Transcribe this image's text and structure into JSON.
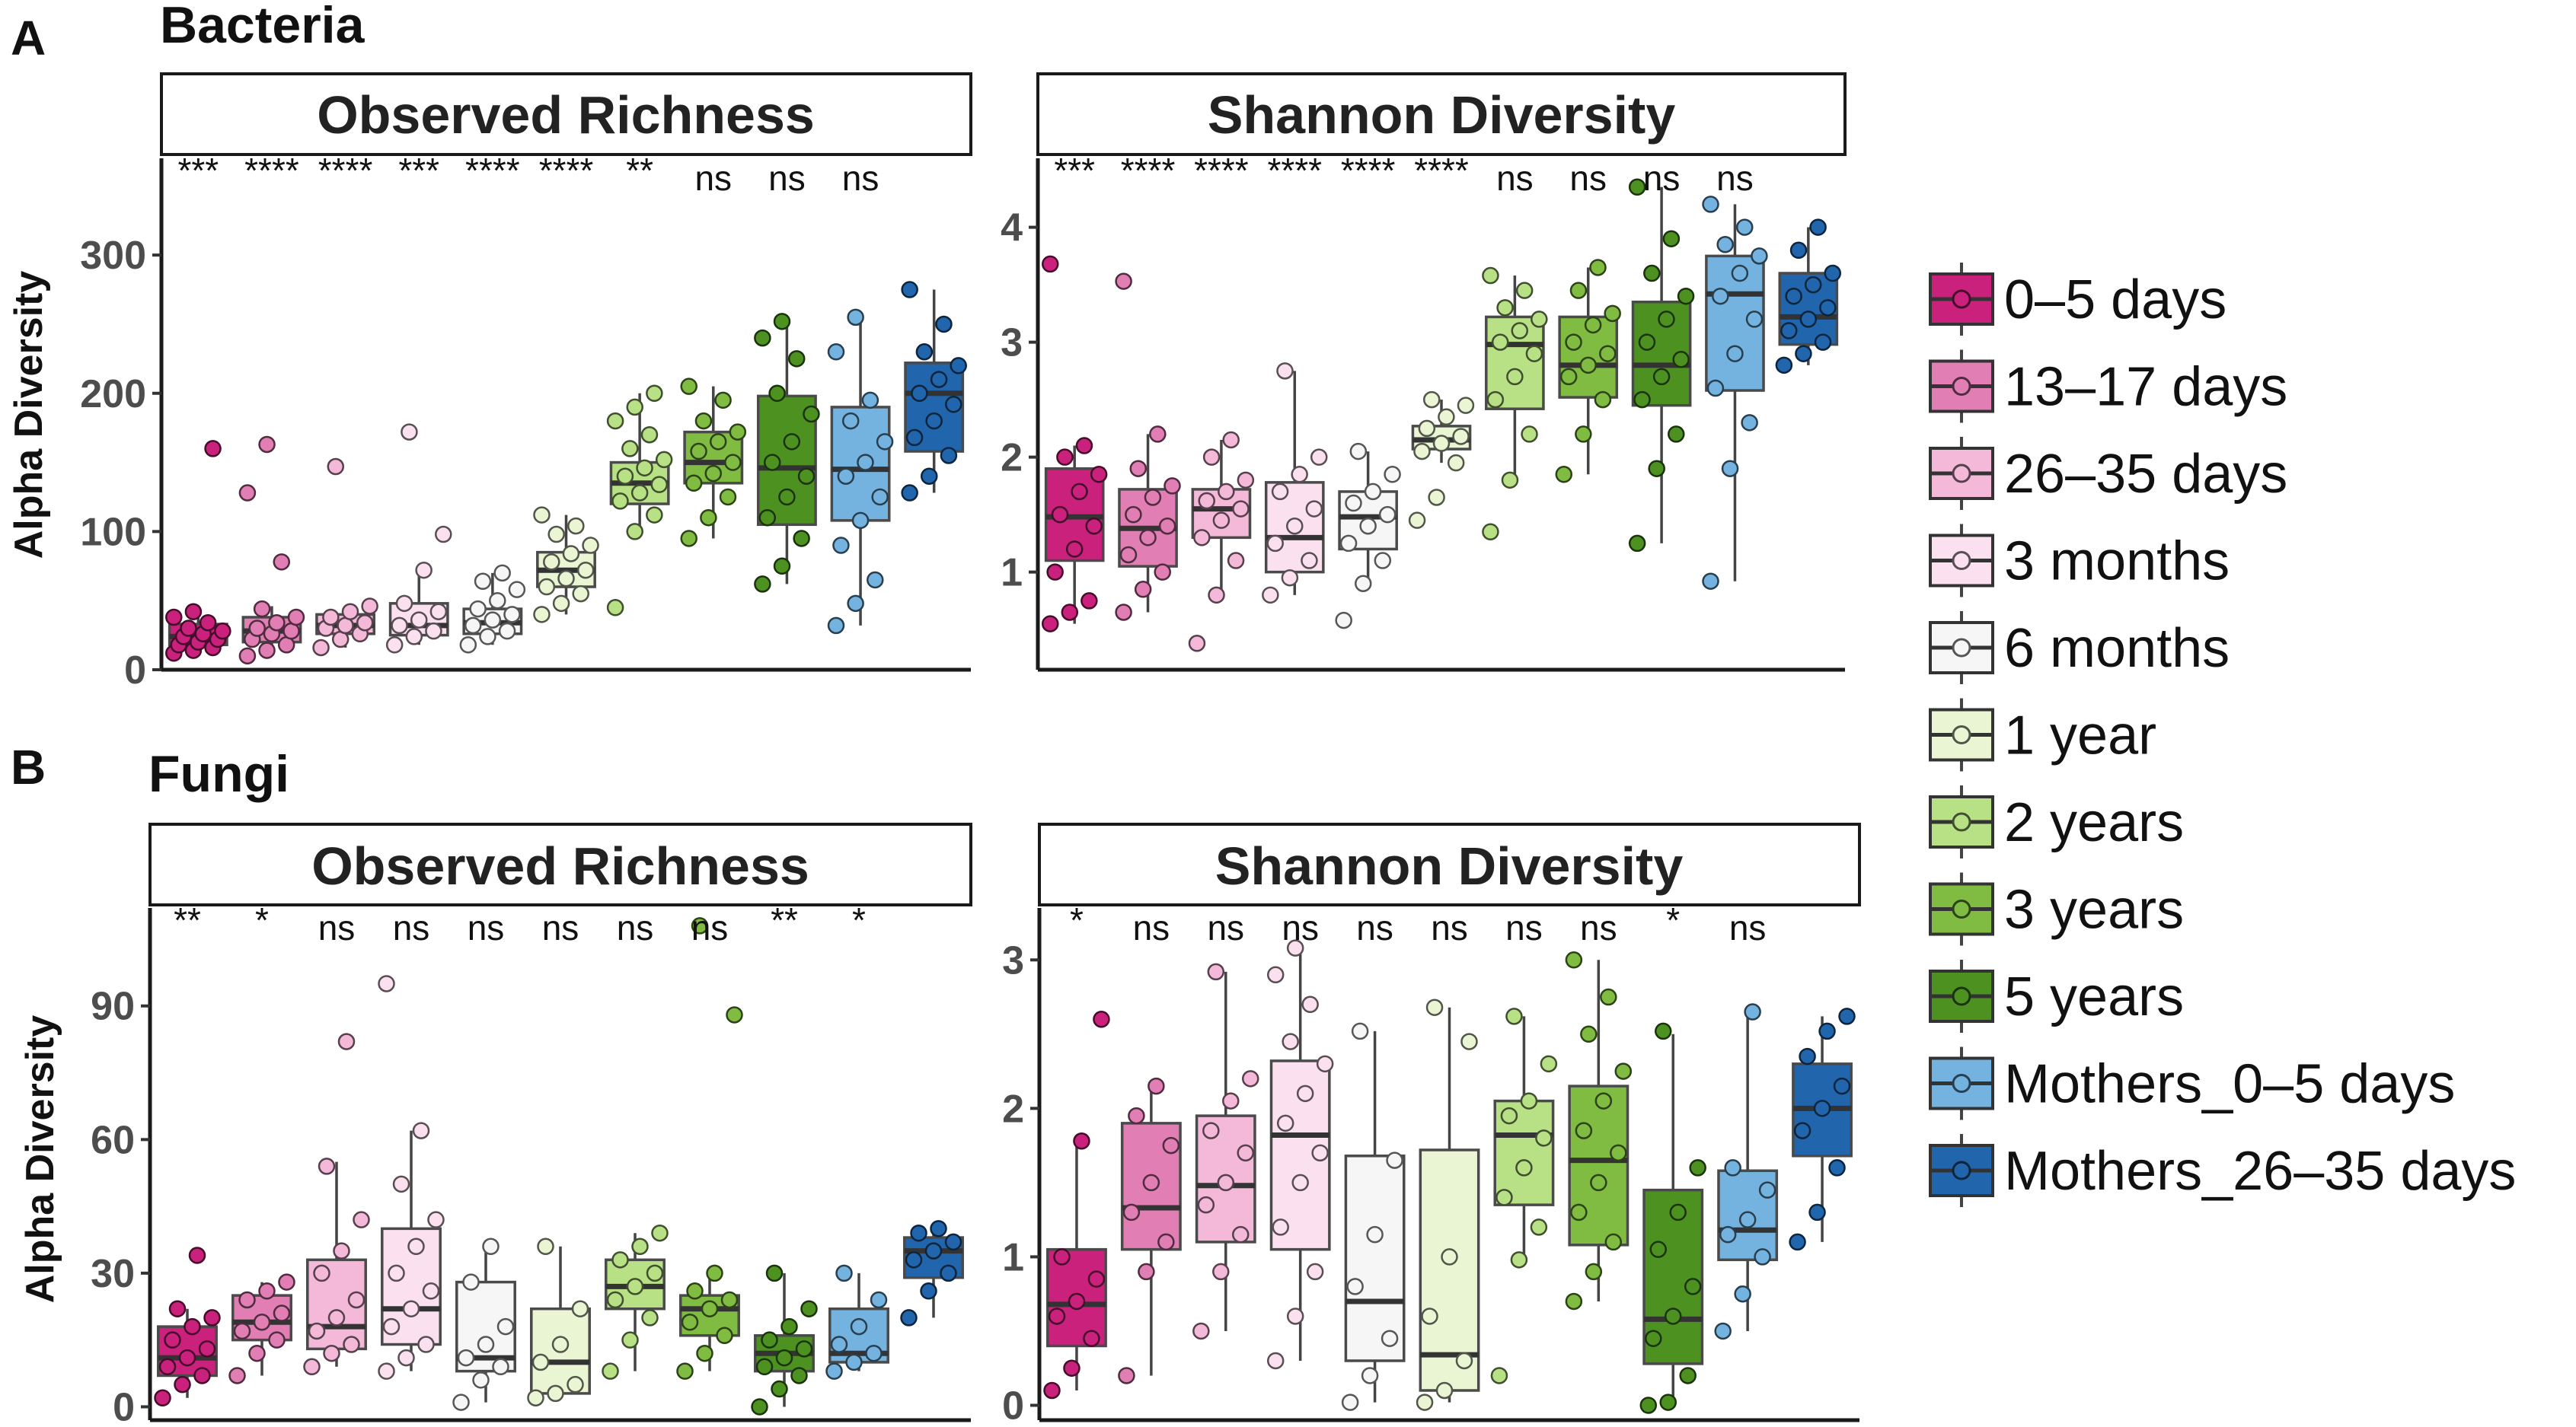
{
  "figure": {
    "panel_letters": [
      "A",
      "B"
    ],
    "section_titles": [
      "Bacteria",
      "Fungi"
    ],
    "legend": {
      "labels": [
        "0–5 days",
        "13–17 days",
        "26–35 days",
        "3 months",
        "6 months",
        "1 year",
        "2 years",
        "3 years",
        "5 years",
        "Mothers_0–5 days",
        "Mothers_26–35 days"
      ],
      "colors": [
        "#c9217c",
        "#e17fb4",
        "#f4b8d8",
        "#fbe0ef",
        "#f6f6f6",
        "#e9f5d3",
        "#b8e186",
        "#7fbc41",
        "#4d9221",
        "#74b3e0",
        "#2166ac"
      ]
    }
  },
  "chart_data": [
    {
      "type": "box",
      "group": "Bacteria",
      "title": "Observed Richness",
      "ylabel": "Alpha Diversity",
      "ylim": [
        0,
        370
      ],
      "yticks": [
        0,
        100,
        200,
        300
      ],
      "tick_labels": [
        "0",
        "100",
        "200",
        "300"
      ],
      "categories": [
        "0–5 days",
        "13–17 days",
        "26–35 days",
        "3 months",
        "6 months",
        "1 year",
        "2 years",
        "3 years",
        "5 years",
        "Mothers_0–5 days",
        "Mothers_26–35 days"
      ],
      "significance": [
        "***",
        "****",
        "****",
        "***",
        "****",
        "****",
        "**",
        "ns",
        "ns",
        "ns",
        ""
      ],
      "boxes": [
        {
          "q1": 18,
          "median": 24,
          "q3": 33,
          "whisker_low": 12,
          "whisker_high": 42,
          "points": [
            12,
            14,
            16,
            18,
            20,
            22,
            24,
            26,
            28,
            30,
            34,
            38,
            42,
            160
          ]
        },
        {
          "q1": 20,
          "median": 28,
          "q3": 38,
          "whisker_low": 10,
          "whisker_high": 46,
          "points": [
            10,
            14,
            18,
            22,
            26,
            28,
            30,
            34,
            38,
            44,
            78,
            128,
            163
          ]
        },
        {
          "q1": 26,
          "median": 32,
          "q3": 40,
          "whisker_low": 16,
          "whisker_high": 46,
          "points": [
            16,
            22,
            26,
            30,
            32,
            34,
            38,
            42,
            46,
            147
          ]
        },
        {
          "q1": 25,
          "median": 32,
          "q3": 48,
          "whisker_low": 18,
          "whisker_high": 72,
          "points": [
            18,
            24,
            28,
            32,
            36,
            42,
            48,
            72,
            98,
            172
          ]
        },
        {
          "q1": 26,
          "median": 34,
          "q3": 44,
          "whisker_low": 18,
          "whisker_high": 70,
          "points": [
            18,
            24,
            28,
            32,
            36,
            40,
            44,
            50,
            58,
            64,
            70
          ]
        },
        {
          "q1": 60,
          "median": 72,
          "q3": 85,
          "whisker_low": 40,
          "whisker_high": 112,
          "points": [
            40,
            48,
            55,
            60,
            66,
            72,
            78,
            84,
            90,
            98,
            104,
            112
          ]
        },
        {
          "q1": 120,
          "median": 135,
          "q3": 150,
          "whisker_low": 100,
          "whisker_high": 200,
          "points": [
            45,
            100,
            112,
            122,
            128,
            134,
            140,
            146,
            152,
            160,
            170,
            180,
            190,
            200
          ]
        },
        {
          "q1": 135,
          "median": 150,
          "q3": 172,
          "whisker_low": 95,
          "whisker_high": 205,
          "points": [
            95,
            110,
            125,
            135,
            142,
            150,
            158,
            165,
            172,
            180,
            195,
            205
          ]
        },
        {
          "q1": 105,
          "median": 146,
          "q3": 198,
          "whisker_low": 62,
          "whisker_high": 252,
          "points": [
            62,
            75,
            95,
            110,
            125,
            140,
            150,
            165,
            185,
            200,
            225,
            240,
            252
          ]
        },
        {
          "q1": 108,
          "median": 145,
          "q3": 190,
          "whisker_low": 32,
          "whisker_high": 255,
          "points": [
            32,
            48,
            65,
            90,
            108,
            125,
            140,
            150,
            165,
            180,
            195,
            230,
            255
          ]
        },
        {
          "q1": 158,
          "median": 200,
          "q3": 222,
          "whisker_low": 128,
          "whisker_high": 275,
          "points": [
            128,
            140,
            155,
            168,
            180,
            192,
            200,
            210,
            220,
            230,
            250,
            275
          ]
        }
      ]
    },
    {
      "type": "box",
      "group": "Bacteria",
      "title": "Shannon Diversity",
      "ylabel": "",
      "ylim": [
        0.15,
        4.6
      ],
      "yticks": [
        1,
        2,
        3,
        4
      ],
      "tick_labels": [
        "1",
        "2",
        "3",
        "4"
      ],
      "categories": [
        "0–5 days",
        "13–17 days",
        "26–35 days",
        "3 months",
        "6 months",
        "1 year",
        "2 years",
        "3 years",
        "5 years",
        "Mothers_0–5 days",
        "Mothers_26–35 days"
      ],
      "significance": [
        "***",
        "****",
        "****",
        "****",
        "****",
        "****",
        "ns",
        "ns",
        "ns",
        "ns",
        ""
      ],
      "boxes": [
        {
          "q1": 1.1,
          "median": 1.48,
          "q3": 1.9,
          "whisker_low": 0.55,
          "whisker_high": 2.1,
          "points": [
            0.55,
            0.65,
            0.75,
            1.0,
            1.2,
            1.4,
            1.5,
            1.7,
            1.85,
            2.0,
            2.1,
            3.68
          ]
        },
        {
          "q1": 1.05,
          "median": 1.38,
          "q3": 1.72,
          "whisker_low": 0.65,
          "whisker_high": 2.2,
          "points": [
            0.65,
            0.85,
            1.0,
            1.15,
            1.3,
            1.4,
            1.5,
            1.65,
            1.75,
            1.9,
            2.2,
            3.53
          ]
        },
        {
          "q1": 1.3,
          "median": 1.55,
          "q3": 1.72,
          "whisker_low": 0.8,
          "whisker_high": 2.15,
          "points": [
            0.38,
            0.8,
            1.1,
            1.3,
            1.45,
            1.55,
            1.62,
            1.7,
            1.8,
            2.0,
            2.15
          ]
        },
        {
          "q1": 1.0,
          "median": 1.3,
          "q3": 1.78,
          "whisker_low": 0.8,
          "whisker_high": 2.75,
          "points": [
            0.8,
            0.95,
            1.1,
            1.25,
            1.4,
            1.55,
            1.7,
            1.85,
            2.0,
            2.75
          ]
        },
        {
          "q1": 1.2,
          "median": 1.48,
          "q3": 1.7,
          "whisker_low": 0.9,
          "whisker_high": 2.05,
          "points": [
            0.58,
            0.9,
            1.1,
            1.25,
            1.4,
            1.5,
            1.6,
            1.7,
            1.85,
            2.05
          ]
        },
        {
          "q1": 2.07,
          "median": 2.15,
          "q3": 2.27,
          "whisker_low": 1.95,
          "whisker_high": 2.5,
          "points": [
            1.45,
            1.65,
            1.95,
            2.05,
            2.12,
            2.18,
            2.25,
            2.35,
            2.45,
            2.5
          ]
        },
        {
          "q1": 2.42,
          "median": 2.98,
          "q3": 3.22,
          "whisker_low": 1.8,
          "whisker_high": 3.58,
          "points": [
            1.35,
            1.8,
            2.2,
            2.5,
            2.7,
            2.9,
            3.0,
            3.1,
            3.2,
            3.3,
            3.45,
            3.58
          ]
        },
        {
          "q1": 2.52,
          "median": 2.8,
          "q3": 3.22,
          "whisker_low": 1.85,
          "whisker_high": 3.65,
          "points": [
            1.85,
            2.2,
            2.5,
            2.7,
            2.8,
            2.9,
            3.0,
            3.15,
            3.25,
            3.45,
            3.65
          ]
        },
        {
          "q1": 2.45,
          "median": 2.8,
          "q3": 3.35,
          "whisker_low": 1.25,
          "whisker_high": 4.35,
          "points": [
            1.25,
            1.9,
            2.2,
            2.5,
            2.7,
            2.85,
            3.0,
            3.2,
            3.4,
            3.6,
            3.9,
            4.35
          ]
        },
        {
          "q1": 2.58,
          "median": 3.42,
          "q3": 3.75,
          "whisker_low": 0.92,
          "whisker_high": 4.2,
          "points": [
            0.92,
            1.9,
            2.3,
            2.6,
            2.9,
            3.2,
            3.4,
            3.6,
            3.75,
            3.85,
            4.0,
            4.2
          ]
        },
        {
          "q1": 2.98,
          "median": 3.22,
          "q3": 3.6,
          "whisker_low": 2.8,
          "whisker_high": 4.0,
          "points": [
            2.8,
            2.9,
            3.0,
            3.1,
            3.2,
            3.3,
            3.4,
            3.5,
            3.6,
            3.8,
            4.0
          ]
        }
      ]
    },
    {
      "type": "box",
      "group": "Fungi",
      "title": "Observed Richness",
      "ylabel": "Alpha Diversity",
      "ylim": [
        -3,
        112
      ],
      "yticks": [
        0,
        30,
        60,
        90
      ],
      "tick_labels": [
        "0",
        "30",
        "60",
        "90"
      ],
      "categories": [
        "0–5 days",
        "13–17 days",
        "26–35 days",
        "3 months",
        "6 months",
        "1 year",
        "2 years",
        "3 years",
        "5 years",
        "Mothers_0–5 days",
        "Mothers_26–35 days"
      ],
      "significance": [
        "**",
        "*",
        "ns",
        "ns",
        "ns",
        "ns",
        "ns",
        "ns",
        "**",
        "*",
        ""
      ],
      "boxes": [
        {
          "q1": 7,
          "median": 11,
          "q3": 18,
          "whisker_low": 2,
          "whisker_high": 22,
          "points": [
            2,
            5,
            7,
            9,
            11,
            13,
            15,
            18,
            20,
            22,
            34
          ]
        },
        {
          "q1": 15,
          "median": 19,
          "q3": 25,
          "whisker_low": 7,
          "whisker_high": 28,
          "points": [
            7,
            12,
            15,
            17,
            19,
            21,
            24,
            26,
            28
          ]
        },
        {
          "q1": 13,
          "median": 18,
          "q3": 33,
          "whisker_low": 9,
          "whisker_high": 55,
          "points": [
            9,
            12,
            14,
            17,
            20,
            24,
            30,
            35,
            42,
            54,
            82
          ]
        },
        {
          "q1": 14,
          "median": 22,
          "q3": 40,
          "whisker_low": 8,
          "whisker_high": 62,
          "points": [
            8,
            11,
            14,
            18,
            22,
            26,
            30,
            36,
            42,
            50,
            62,
            95
          ]
        },
        {
          "q1": 8,
          "median": 11,
          "q3": 28,
          "whisker_low": 1,
          "whisker_high": 36,
          "points": [
            1,
            6,
            9,
            11,
            14,
            18,
            28,
            36
          ]
        },
        {
          "q1": 3,
          "median": 10,
          "q3": 22,
          "whisker_low": 2,
          "whisker_high": 36,
          "points": [
            2,
            3,
            5,
            10,
            14,
            22,
            36
          ]
        },
        {
          "q1": 22,
          "median": 27,
          "q3": 33,
          "whisker_low": 8,
          "whisker_high": 39,
          "points": [
            8,
            15,
            20,
            24,
            27,
            30,
            33,
            36,
            39
          ]
        },
        {
          "q1": 16,
          "median": 22,
          "q3": 25,
          "whisker_low": 8,
          "whisker_high": 30,
          "points": [
            8,
            12,
            16,
            19,
            22,
            24,
            26,
            30,
            88,
            108
          ]
        },
        {
          "q1": 8,
          "median": 12,
          "q3": 16,
          "whisker_low": 0,
          "whisker_high": 30,
          "points": [
            0,
            4,
            7,
            9,
            11,
            13,
            15,
            18,
            22,
            30
          ]
        },
        {
          "q1": 10,
          "median": 12,
          "q3": 22,
          "whisker_low": 8,
          "whisker_high": 30,
          "points": [
            8,
            10,
            12,
            14,
            18,
            24,
            30
          ]
        },
        {
          "q1": 29,
          "median": 35,
          "q3": 38,
          "whisker_low": 20,
          "whisker_high": 40,
          "points": [
            20,
            26,
            30,
            33,
            35,
            37,
            39,
            40
          ]
        }
      ]
    },
    {
      "type": "box",
      "group": "Fungi",
      "title": "Shannon Diversity",
      "ylabel": "",
      "ylim": [
        -0.1,
        3.35
      ],
      "yticks": [
        0,
        1,
        2,
        3
      ],
      "tick_labels": [
        "0",
        "1",
        "2",
        "3"
      ],
      "categories": [
        "0–5 days",
        "13–17 days",
        "26–35 days",
        "3 months",
        "6 months",
        "1 year",
        "2 years",
        "3 years",
        "5 years",
        "Mothers_0–5 days",
        "Mothers_26–35 days"
      ],
      "significance": [
        "*",
        "ns",
        "ns",
        "ns",
        "ns",
        "ns",
        "ns",
        "ns",
        "*",
        "ns",
        ""
      ],
      "boxes": [
        {
          "q1": 0.4,
          "median": 0.68,
          "q3": 1.05,
          "whisker_low": 0.1,
          "whisker_high": 1.78,
          "points": [
            0.1,
            0.25,
            0.45,
            0.6,
            0.7,
            0.85,
            1.0,
            1.78,
            2.6
          ]
        },
        {
          "q1": 1.05,
          "median": 1.33,
          "q3": 1.9,
          "whisker_low": 0.2,
          "whisker_high": 2.15,
          "points": [
            0.2,
            0.9,
            1.1,
            1.3,
            1.5,
            1.75,
            1.95,
            2.15
          ]
        },
        {
          "q1": 1.1,
          "median": 1.48,
          "q3": 1.95,
          "whisker_low": 0.5,
          "whisker_high": 2.92,
          "points": [
            0.5,
            0.9,
            1.15,
            1.35,
            1.5,
            1.7,
            1.85,
            2.05,
            2.2,
            2.92
          ]
        },
        {
          "q1": 1.05,
          "median": 1.82,
          "q3": 2.32,
          "whisker_low": 0.3,
          "whisker_high": 3.08,
          "points": [
            0.3,
            0.6,
            0.9,
            1.2,
            1.5,
            1.7,
            1.9,
            2.1,
            2.3,
            2.45,
            2.7,
            2.9,
            3.08
          ]
        },
        {
          "q1": 0.3,
          "median": 0.7,
          "q3": 1.68,
          "whisker_low": 0.02,
          "whisker_high": 2.52,
          "points": [
            0.02,
            0.2,
            0.45,
            0.8,
            1.15,
            1.65,
            2.52
          ]
        },
        {
          "q1": 0.1,
          "median": 0.34,
          "q3": 1.72,
          "whisker_low": 0.02,
          "whisker_high": 2.68,
          "points": [
            0.02,
            0.1,
            0.3,
            0.6,
            1.0,
            2.45,
            2.68
          ]
        },
        {
          "q1": 1.35,
          "median": 1.82,
          "q3": 2.05,
          "whisker_low": 0.98,
          "whisker_high": 2.62,
          "points": [
            0.2,
            0.98,
            1.2,
            1.4,
            1.6,
            1.8,
            1.95,
            2.05,
            2.3,
            2.62
          ]
        },
        {
          "q1": 1.08,
          "median": 1.65,
          "q3": 2.15,
          "whisker_low": 0.7,
          "whisker_high": 3.0,
          "points": [
            0.7,
            0.9,
            1.1,
            1.3,
            1.5,
            1.7,
            1.85,
            2.05,
            2.25,
            2.5,
            2.75,
            3.0
          ]
        },
        {
          "q1": 0.28,
          "median": 0.58,
          "q3": 1.45,
          "whisker_low": 0.0,
          "whisker_high": 2.5,
          "points": [
            0.0,
            0.02,
            0.2,
            0.45,
            0.6,
            0.8,
            1.05,
            1.3,
            1.6,
            2.52
          ]
        },
        {
          "q1": 0.98,
          "median": 1.18,
          "q3": 1.58,
          "whisker_low": 0.5,
          "whisker_high": 2.65,
          "points": [
            0.5,
            0.75,
            1.0,
            1.15,
            1.25,
            1.45,
            1.6,
            2.65
          ]
        },
        {
          "q1": 1.68,
          "median": 2.0,
          "q3": 2.3,
          "whisker_low": 1.1,
          "whisker_high": 2.62,
          "points": [
            1.1,
            1.3,
            1.6,
            1.85,
            2.0,
            2.15,
            2.35,
            2.52,
            2.62
          ]
        }
      ]
    }
  ]
}
